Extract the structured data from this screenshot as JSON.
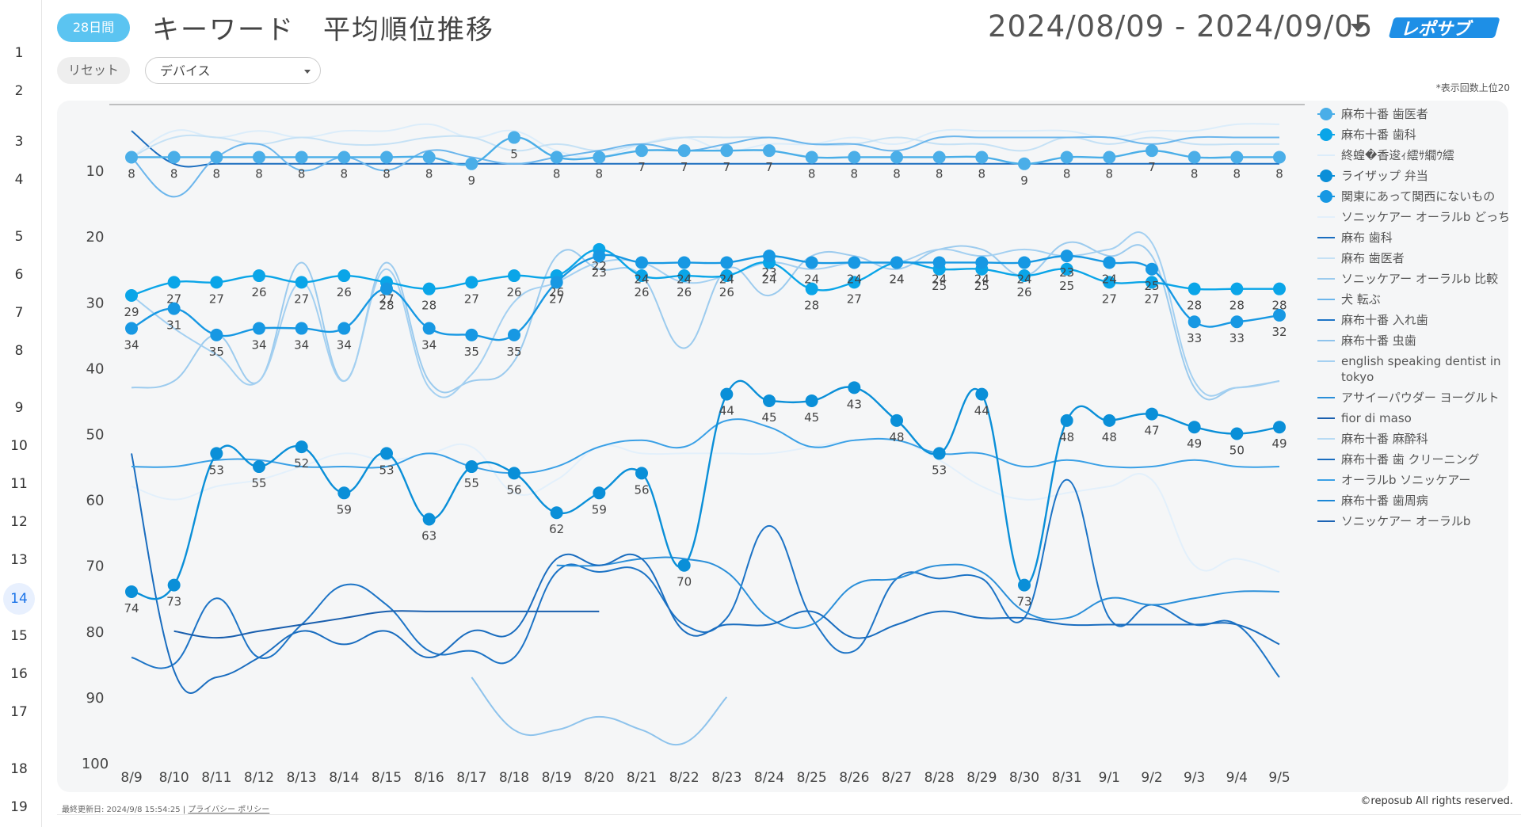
{
  "header": {
    "period_badge": "28日間",
    "title": "キーワード　平均順位推移",
    "date_range": "2024/08/09 - 2024/09/05",
    "logo_text": "レポサブ"
  },
  "controls": {
    "reset_label": "リセット",
    "device_label": "デバイス"
  },
  "note": "*表示回数上位20",
  "footer": {
    "updated": "最終更新日: 2024/9/8 15:54:25",
    "separator": "|",
    "privacy_link": "プライバシー ポリシー",
    "copyright": "©reposub All rights reserved."
  },
  "row_numbers": [
    "1",
    "2",
    "3",
    "4",
    "5",
    "6",
    "7",
    "8",
    "9",
    "10",
    "11",
    "12",
    "13",
    "14",
    "15",
    "16",
    "17",
    "18",
    "19"
  ],
  "active_row": "14",
  "colors": {
    "accent": "#5bc4f1",
    "series_bright": "#0aa5e8",
    "series_mid": "#3d98df",
    "series_dark": "#1a6dbf",
    "series_light": "#a9d3f0",
    "series_pale": "#dcedfa",
    "logo_blue": "#1e8fe6"
  },
  "chart_data": {
    "type": "line",
    "title": "",
    "xlabel": "",
    "ylabel": "",
    "ylim": [
      100,
      0
    ],
    "y_reversed": true,
    "yticks": [
      10,
      20,
      30,
      40,
      50,
      60,
      70,
      80,
      90,
      100
    ],
    "grid": false,
    "legend_position": "right",
    "categories": [
      "8/9",
      "8/10",
      "8/11",
      "8/12",
      "8/13",
      "8/14",
      "8/15",
      "8/16",
      "8/17",
      "8/18",
      "8/19",
      "8/20",
      "8/21",
      "8/22",
      "8/23",
      "8/24",
      "8/25",
      "8/26",
      "8/27",
      "8/28",
      "8/29",
      "8/30",
      "8/31",
      "9/1",
      "9/2",
      "9/3",
      "9/4",
      "9/5"
    ],
    "series": [
      {
        "name": "麻布十番 歯医者",
        "color": "#4aaee8",
        "markers": true,
        "labels": true,
        "values": [
          8,
          8,
          8,
          8,
          8,
          8,
          8,
          8,
          9,
          5,
          8,
          8,
          7,
          7,
          7,
          7,
          8,
          8,
          8,
          8,
          8,
          9,
          8,
          8,
          7,
          8,
          8,
          8
        ]
      },
      {
        "name": "麻布十番 歯科",
        "color": "#0aa5e8",
        "markers": true,
        "labels": true,
        "values": [
          29,
          27,
          27,
          26,
          27,
          26,
          27,
          28,
          27,
          26,
          26,
          22,
          26,
          26,
          26,
          24,
          28,
          27,
          24,
          25,
          25,
          26,
          25,
          27,
          27,
          28,
          28,
          28
        ]
      },
      {
        "name": "終蝗�香逡ｨ繧ｻ繝ｳ繧",
        "color": "#dcedfa",
        "markers": false,
        "labels": false,
        "values": [
          8,
          4,
          5,
          4,
          5,
          4,
          4,
          3,
          5,
          4,
          7,
          8,
          6,
          5,
          7,
          6,
          6,
          5,
          6,
          4,
          4,
          4,
          4,
          5,
          4,
          4,
          3,
          3
        ]
      },
      {
        "name": "ライザップ 弁当",
        "color": "#0a8fd8",
        "markers": true,
        "labels": true,
        "values": [
          74,
          73,
          53,
          55,
          52,
          59,
          53,
          63,
          55,
          56,
          62,
          59,
          56,
          70,
          44,
          45,
          45,
          43,
          48,
          53,
          44,
          73,
          48,
          48,
          47,
          49,
          50,
          49
        ]
      },
      {
        "name": "関東にあって関西にないもの",
        "color": "#1798e3",
        "markers": true,
        "labels": true,
        "values": [
          34,
          31,
          35,
          34,
          34,
          34,
          28,
          34,
          35,
          35,
          27,
          23,
          24,
          24,
          24,
          23,
          24,
          24,
          24,
          24,
          24,
          24,
          23,
          24,
          25,
          33,
          33,
          32
        ]
      },
      {
        "name": "ソニッケアー オーラルb どっち",
        "color": "#e3f0fb",
        "markers": false,
        "labels": false,
        "values": [
          58,
          60,
          58,
          57,
          55,
          53,
          54,
          53,
          52,
          59,
          57,
          52,
          53,
          53,
          53,
          53,
          52,
          51,
          51,
          54,
          58,
          60,
          59,
          58,
          57,
          70,
          69,
          71
        ]
      },
      {
        "name": "麻布 歯科",
        "color": "#1a6dbf",
        "markers": false,
        "labels": false,
        "values": [
          4,
          9,
          9,
          9,
          9,
          9,
          9,
          9,
          9,
          9,
          9,
          9,
          9,
          9,
          9,
          9,
          9,
          9,
          9,
          9,
          9,
          9,
          9,
          9,
          9,
          9,
          9,
          9
        ]
      },
      {
        "name": "麻布 歯医者",
        "color": "#c5e1f5",
        "markers": false,
        "labels": false,
        "values": [
          8,
          5,
          5,
          6,
          5,
          6,
          6,
          5,
          5,
          7,
          6,
          7,
          6,
          5,
          5,
          5,
          6,
          6,
          5,
          6,
          6,
          7,
          5,
          6,
          5,
          6,
          6,
          6
        ]
      },
      {
        "name": "ソニッケアー オーラルb 比較",
        "color": "#9ccbee",
        "markers": false,
        "labels": false,
        "values": [
          43,
          42,
          35,
          42,
          24,
          42,
          24,
          42,
          42,
          39,
          23,
          25,
          26,
          37,
          25,
          29,
          23,
          23,
          25,
          22,
          22,
          26,
          21,
          23,
          23,
          43,
          43,
          42
        ]
      },
      {
        "name": "犬 転ぶ",
        "color": "#6cb6ec",
        "markers": false,
        "labels": false,
        "values": [
          8,
          14,
          8,
          6,
          10,
          8,
          10,
          7,
          8,
          9,
          8,
          7,
          6,
          7,
          6,
          5,
          6,
          6,
          7,
          5,
          5,
          5,
          5,
          5,
          6,
          5,
          5,
          5
        ]
      },
      {
        "name": "麻布十番 入れ歯",
        "color": "#1d74c6",
        "markers": false,
        "labels": false,
        "values": [
          84,
          85,
          75,
          84,
          79,
          73,
          76,
          83,
          83,
          84,
          71,
          71,
          71,
          79,
          78,
          64,
          78,
          83,
          72,
          72,
          72,
          78,
          57,
          78,
          76,
          79,
          79,
          87
        ]
      },
      {
        "name": "麻布十番 虫歯",
        "color": "#8ec3ec",
        "markers": false,
        "labels": false,
        "values": [
          null,
          null,
          null,
          null,
          null,
          null,
          null,
          null,
          87,
          95,
          95,
          93,
          95,
          97,
          90,
          null,
          null,
          null,
          null,
          null,
          null,
          null,
          null,
          null,
          null,
          null,
          null,
          null
        ]
      },
      {
        "name": "english speaking dentist in tokyo",
        "color": "#a4d0f1",
        "markers": false,
        "labels": false,
        "values": [
          29,
          34,
          38,
          42,
          27,
          42,
          25,
          43,
          41,
          30,
          27,
          24,
          24,
          27,
          26,
          24,
          25,
          24,
          24,
          22,
          23,
          22,
          23,
          22,
          21,
          42,
          43,
          42
        ]
      },
      {
        "name": "アサイーパウダー ヨーグルト",
        "color": "#2b8fd9",
        "markers": false,
        "labels": false,
        "values": [
          null,
          null,
          null,
          null,
          null,
          null,
          null,
          null,
          null,
          null,
          70,
          70,
          69,
          69,
          71,
          78,
          79,
          73,
          72,
          70,
          71,
          77,
          78,
          75,
          76,
          75,
          74,
          74
        ]
      },
      {
        "name": "fior di maso",
        "color": "#1a5fae",
        "markers": false,
        "labels": false,
        "values": [
          null,
          80,
          81,
          80,
          79,
          78,
          77,
          77,
          77,
          77,
          77,
          77,
          null,
          null,
          null,
          null,
          null,
          null,
          null,
          null,
          null,
          null,
          null,
          null,
          null,
          null,
          null,
          null
        ]
      },
      {
        "name": "麻布十番 麻酔科",
        "color": "#b8dbf4",
        "markers": false,
        "labels": false,
        "values": [
          null,
          null,
          null,
          null,
          null,
          null,
          null,
          null,
          null,
          null,
          null,
          null,
          null,
          null,
          null,
          null,
          null,
          null,
          null,
          null,
          null,
          null,
          null,
          null,
          null,
          null,
          null,
          null
        ]
      },
      {
        "name": "麻布十番 歯 クリーニング",
        "color": "#1a6dbf",
        "markers": false,
        "labels": false,
        "values": [
          53,
          86,
          87,
          84,
          80,
          82,
          80,
          84,
          80,
          80,
          69,
          70,
          69,
          80,
          79,
          79,
          77,
          81,
          79,
          77,
          78,
          78,
          79,
          79,
          79,
          79,
          79,
          82
        ]
      },
      {
        "name": "オーラルb ソニッケアー",
        "color": "#3aa0e6",
        "markers": false,
        "labels": false,
        "values": [
          55,
          55,
          54,
          54,
          55,
          55,
          55,
          53,
          55,
          56,
          55,
          52,
          51,
          52,
          48,
          49,
          52,
          51,
          51,
          53,
          53,
          55,
          54,
          55,
          55,
          54,
          55,
          55
        ]
      },
      {
        "name": "麻布十番 歯周病",
        "color": "#1a86d6",
        "markers": false,
        "labels": false,
        "values": [
          null,
          null,
          null,
          null,
          null,
          null,
          null,
          null,
          null,
          null,
          null,
          null,
          null,
          null,
          null,
          null,
          null,
          null,
          null,
          null,
          null,
          null,
          null,
          null,
          null,
          null,
          null,
          null
        ]
      },
      {
        "name": "ソニッケアー オーラルb",
        "color": "#1c63b4",
        "markers": false,
        "labels": false,
        "values": [
          null,
          null,
          null,
          null,
          null,
          null,
          null,
          null,
          null,
          null,
          null,
          null,
          null,
          null,
          null,
          null,
          null,
          null,
          null,
          null,
          null,
          null,
          null,
          null,
          null,
          null,
          null,
          null
        ]
      }
    ]
  }
}
